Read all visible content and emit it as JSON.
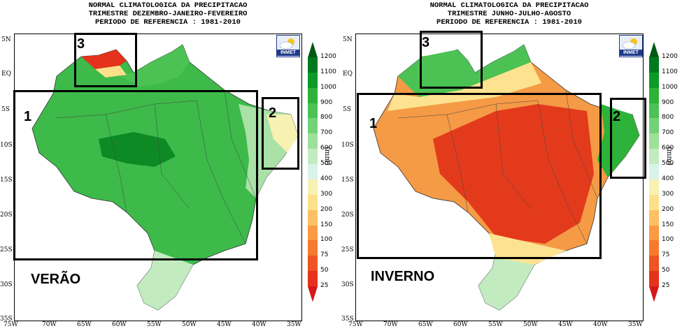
{
  "panels": [
    {
      "id": "summer",
      "title_lines": [
        "NORMAL CLIMATOLOGICA DA PRECIPITACAO",
        "TRIMESTRE DEZEMBRO-JANEIRO-FEVEREIRO",
        "PERIODO DE REFERENCIA : 1981-2010"
      ],
      "season_label": "VERÃO",
      "region_labels": [
        "1",
        "2",
        "3"
      ],
      "logo_text": "INMET"
    },
    {
      "id": "winter",
      "title_lines": [
        "NORMAL CLIMATOLOGICA DA PRECIPITACAO",
        "TRIMESTRE JUNHO-JULHO-AGOSTO",
        "PERIODO DE REFERENCIA : 1981-2010"
      ],
      "season_label": "INVERNO",
      "region_labels": [
        "1",
        "2",
        "3"
      ],
      "logo_text": "INMET"
    }
  ],
  "axes": {
    "lon_ticks": [
      "75W",
      "70W",
      "65W",
      "60W",
      "55W",
      "50W",
      "45W",
      "40W",
      "35W"
    ],
    "lat_ticks": [
      "5N",
      "EQ",
      "5S",
      "10S",
      "15S",
      "20S",
      "25S",
      "30S",
      "35S"
    ]
  },
  "colorbar": {
    "unit": "(mm)",
    "levels": [
      "1200",
      "1100",
      "1000",
      "900",
      "800",
      "700",
      "600",
      "500",
      "400",
      "300",
      "200",
      "150",
      "100",
      "75",
      "50",
      "25"
    ],
    "colors": [
      "#005a14",
      "#007a1e",
      "#0e9a28",
      "#2db23a",
      "#4cc254",
      "#73d277",
      "#9de09a",
      "#c2ecc0",
      "#d9f3e8",
      "#f7f1b2",
      "#fde08a",
      "#fdc062",
      "#fb9a42",
      "#f67a2c",
      "#ee5424",
      "#e4321c",
      "#d6181a"
    ]
  },
  "colors": {
    "summer_main": "#3dba4a",
    "summer_dark": "#0e8a24",
    "summer_light": "#a9e1a6",
    "winter_main": "#f59a45",
    "winter_dark": "#e33a1c",
    "winter_light": "#fde38f"
  }
}
